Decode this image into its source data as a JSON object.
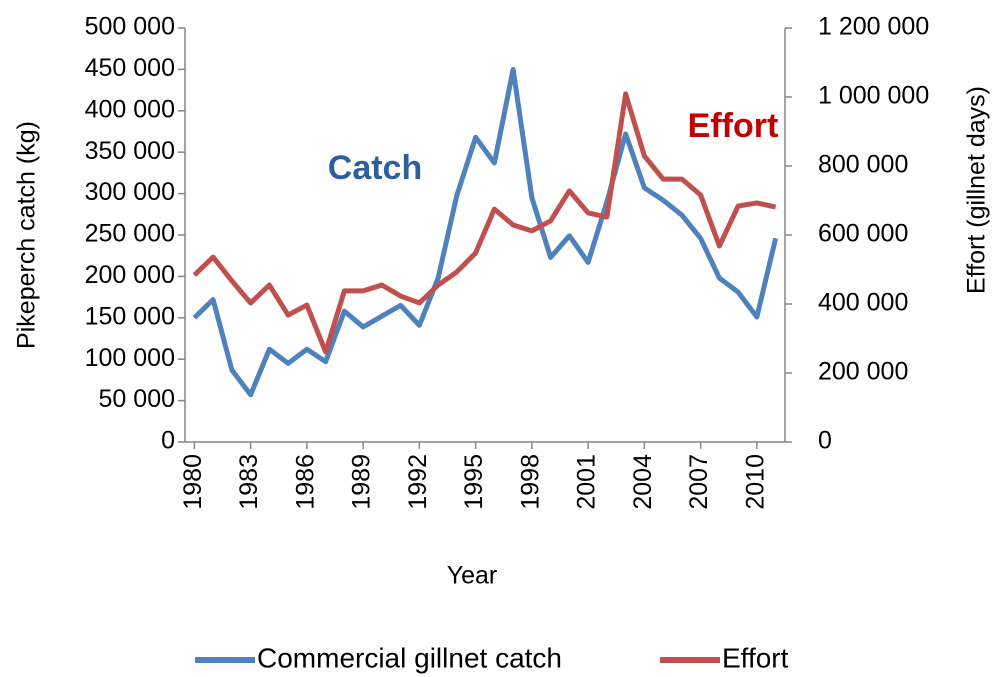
{
  "chart_data": {
    "type": "line",
    "x_label": "Year",
    "y_label": "Pikeperch catch (kg)",
    "y2_label": "Effort (gillnet days)",
    "annotations": [
      {
        "text": "Catch",
        "color": "#2e5e9c"
      },
      {
        "text": "Effort",
        "color": "#c00000"
      }
    ],
    "x": [
      1980,
      1981,
      1982,
      1983,
      1984,
      1985,
      1986,
      1987,
      1988,
      1989,
      1990,
      1991,
      1992,
      1993,
      1994,
      1995,
      1996,
      1997,
      1998,
      1999,
      2000,
      2001,
      2002,
      2003,
      2004,
      2005,
      2006,
      2007,
      2008,
      2009,
      2010,
      2011
    ],
    "series": [
      {
        "name": "Commercial gillnet catch",
        "color": "#4f81bd",
        "axis": "y",
        "values": [
          150000,
          172000,
          87000,
          57000,
          112000,
          95000,
          112000,
          97000,
          158000,
          139000,
          152000,
          165000,
          141000,
          198000,
          298000,
          368000,
          337000,
          450000,
          295000,
          223000,
          249000,
          217000,
          290000,
          372000,
          307000,
          292000,
          274000,
          246000,
          198000,
          181000,
          151000,
          246000
        ]
      },
      {
        "name": "Effort",
        "color": "#c0504d",
        "axis": "y2",
        "values": [
          484000,
          536000,
          467000,
          403000,
          455000,
          368000,
          397000,
          261000,
          438000,
          438000,
          455000,
          423000,
          403000,
          455000,
          493000,
          548000,
          675000,
          629000,
          612000,
          641000,
          728000,
          664000,
          652000,
          1009000,
          829000,
          762000,
          762000,
          716000,
          568000,
          684000,
          693000,
          681000
        ]
      }
    ],
    "xlim": [
      1979.5,
      2011.5
    ],
    "xticks": [
      1980,
      1983,
      1986,
      1989,
      1992,
      1995,
      1998,
      2001,
      2004,
      2007,
      2010
    ],
    "ylim": [
      0,
      500000
    ],
    "yticks": [
      0,
      {
        "value": 50000,
        "label": "50 000"
      },
      {
        "value": 100000,
        "label": "100 000"
      },
      {
        "value": 150000,
        "label": "150 000"
      },
      {
        "value": 200000,
        "label": "200 000"
      },
      {
        "value": 250000,
        "label": "250 000"
      },
      {
        "value": 300000,
        "label": "300 000"
      },
      {
        "value": 350000,
        "label": "350 000"
      },
      {
        "value": 400000,
        "label": "400 000"
      },
      {
        "value": 450000,
        "label": "450 000"
      },
      {
        "value": 500000,
        "label": "500 000"
      }
    ],
    "y2lim": [
      0,
      1200000
    ],
    "y2ticks": [
      0,
      {
        "value": 200000,
        "label": "200 000"
      },
      {
        "value": 400000,
        "label": "400 000"
      },
      {
        "value": 600000,
        "label": "600 000"
      },
      {
        "value": 800000,
        "label": "800 000"
      },
      {
        "value": 1000000,
        "label": "1 000 000"
      },
      {
        "value": 1200000,
        "label": "1 200 000"
      }
    ],
    "legend": "bottom"
  }
}
